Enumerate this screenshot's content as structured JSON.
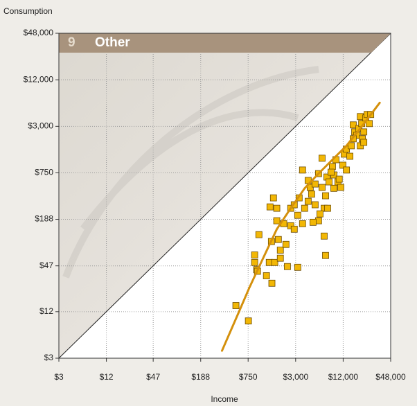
{
  "chart_data": {
    "type": "scatter",
    "panel_number": "9",
    "title": "Other",
    "y_label": "Consumption",
    "x_label": "Income",
    "log_scale": true,
    "grid": true,
    "xlim": [
      3,
      48000
    ],
    "ylim": [
      3,
      48000
    ],
    "xticks": [
      {
        "value": 3,
        "label": "$3"
      },
      {
        "value": 12,
        "label": "$12"
      },
      {
        "value": 47,
        "label": "$47"
      },
      {
        "value": 188,
        "label": "$188"
      },
      {
        "value": 750,
        "label": "$750"
      },
      {
        "value": 3000,
        "label": "$3,000"
      },
      {
        "value": 12000,
        "label": "$12,000"
      },
      {
        "value": 48000,
        "label": "$48,000"
      }
    ],
    "yticks": [
      {
        "value": 3,
        "label": "$3"
      },
      {
        "value": 12,
        "label": "$12"
      },
      {
        "value": 47,
        "label": "$47"
      },
      {
        "value": 188,
        "label": "$188"
      },
      {
        "value": 750,
        "label": "$750"
      },
      {
        "value": 3000,
        "label": "$3,000"
      },
      {
        "value": 12000,
        "label": "$12,000"
      },
      {
        "value": 48000,
        "label": "$48,000"
      }
    ],
    "series": [
      {
        "type": "scatter",
        "color": "#f2b705",
        "edge_color": "#6b4a00",
        "x": [
          525,
          756,
          907,
          907,
          963,
          1027,
          985,
          1280,
          1390,
          1500,
          1480,
          1630,
          1730,
          1810,
          1920,
          1920,
          2120,
          2260,
          2360,
          1420,
          1570,
          1730,
          2600,
          2880,
          3190,
          2600,
          2880,
          3190,
          3320,
          3670,
          3900,
          4320,
          3670,
          4320,
          4590,
          4780,
          5290,
          5290,
          5850,
          6480,
          6480,
          6890,
          7180,
          6890,
          7180,
          7470,
          7940,
          8780,
          9150,
          9720,
          10300,
          10700,
          11900,
          12400,
          13200,
          11200,
          13200,
          14600,
          15200,
          16100,
          16800,
          17800,
          19000,
          19800,
          20600,
          21900,
          16100,
          23200,
          24200,
          25700,
          26800,
          19800,
          21000,
          21900,
          7620,
          5850,
          4980,
          6100,
          8430,
          9150
        ],
        "values": [
          14.4,
          9.1,
          65,
          52,
          42,
          119,
          40,
          35,
          52,
          28,
          97,
          52,
          180,
          103,
          75,
          59,
          165,
          89,
          46,
          272,
          356,
          261,
          261,
          290,
          45,
          155,
          140,
          212,
          356,
          165,
          261,
          321,
          816,
          598,
          486,
          398,
          290,
          538,
          734,
          1160,
          486,
          261,
          379,
          114,
          64,
          662,
          573,
          903,
          705,
          1110,
          573,
          622,
          942,
          1310,
          1520,
          486,
          816,
          1230,
          1680,
          3130,
          2540,
          2290,
          2820,
          4010,
          3260,
          2540,
          2070,
          3850,
          4270,
          3260,
          4270,
          1680,
          2070,
          1860,
          261,
          180,
          172,
          221,
          765,
          473
        ]
      },
      {
        "type": "line",
        "color": "#d4900c",
        "x": [
          350,
          569,
          770,
          1160,
          1730,
          2600,
          3900,
          5850,
          8780,
          13200,
          19800,
          34900
        ],
        "values": [
          3.75,
          11.7,
          24,
          59,
          140,
          261,
          473,
          734,
          1110,
          1680,
          2820,
          6060
        ]
      }
    ]
  }
}
